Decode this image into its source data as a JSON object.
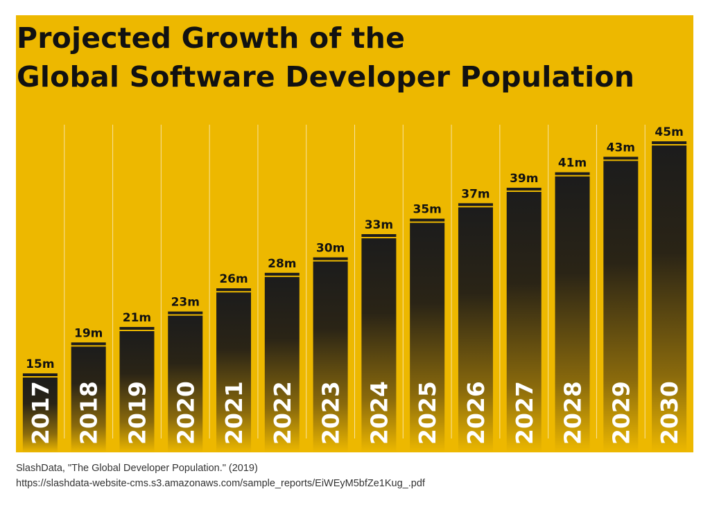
{
  "title_lines": [
    "Projected Growth of the",
    "Global Software Developer Population"
  ],
  "source": {
    "line1": "SlashData, \"The Global Developer Population.\" (2019)",
    "line2": "https://slashdata-website-cms.s3.amazonaws.com/sample_reports/EiWEyM5bfZe1Kug_.pdf"
  },
  "colors": {
    "background": "#EDB800",
    "bar_dark": "#1C1C1C",
    "text": "#111111",
    "year_text": "#FFFFFF",
    "divider": "#F8E3A0"
  },
  "chart_data": {
    "type": "bar",
    "categories": [
      "2017",
      "2018",
      "2019",
      "2020",
      "2021",
      "2022",
      "2023",
      "2024",
      "2025",
      "2026",
      "2027",
      "2028",
      "2029",
      "2030"
    ],
    "values": [
      15,
      19,
      21,
      23,
      26,
      28,
      30,
      33,
      35,
      37,
      39,
      41,
      43,
      45
    ],
    "labels": [
      "15m",
      "19m",
      "21m",
      "23m",
      "26m",
      "28m",
      "30m",
      "33m",
      "35m",
      "37m",
      "39m",
      "41m",
      "43m",
      "45m"
    ],
    "title": "Projected Growth of the Global Software Developer Population",
    "xlabel": "",
    "ylabel": "",
    "ylim": [
      0,
      45
    ],
    "grid": false,
    "legend": "none"
  }
}
